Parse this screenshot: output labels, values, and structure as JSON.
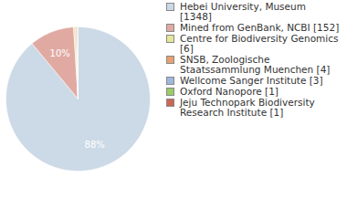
{
  "chart_data": {
    "type": "pie",
    "categories": [
      "Hebei University, Museum [1348]",
      "Mined from GenBank, NCBI [152]",
      "Centre for Biodiversity Genomics [6]",
      "SNSB, Zoologische Staatssammlung Muenchen [4]",
      "Wellcome Sanger Institute [3]",
      "Oxford Nanopore [1]",
      "Jeju Technopark Biodiversity Research Institute [1]"
    ],
    "values": [
      1348,
      152,
      6,
      4,
      3,
      1,
      1
    ],
    "percent_labels": [
      "88%",
      "10%",
      null,
      null,
      null,
      null,
      null
    ],
    "colors": [
      "#ccd9e6",
      "#e0aaa2",
      "#e6e699",
      "#e8a070",
      "#9fb8dc",
      "#99cc66",
      "#cc6655"
    ],
    "legend": "right"
  }
}
